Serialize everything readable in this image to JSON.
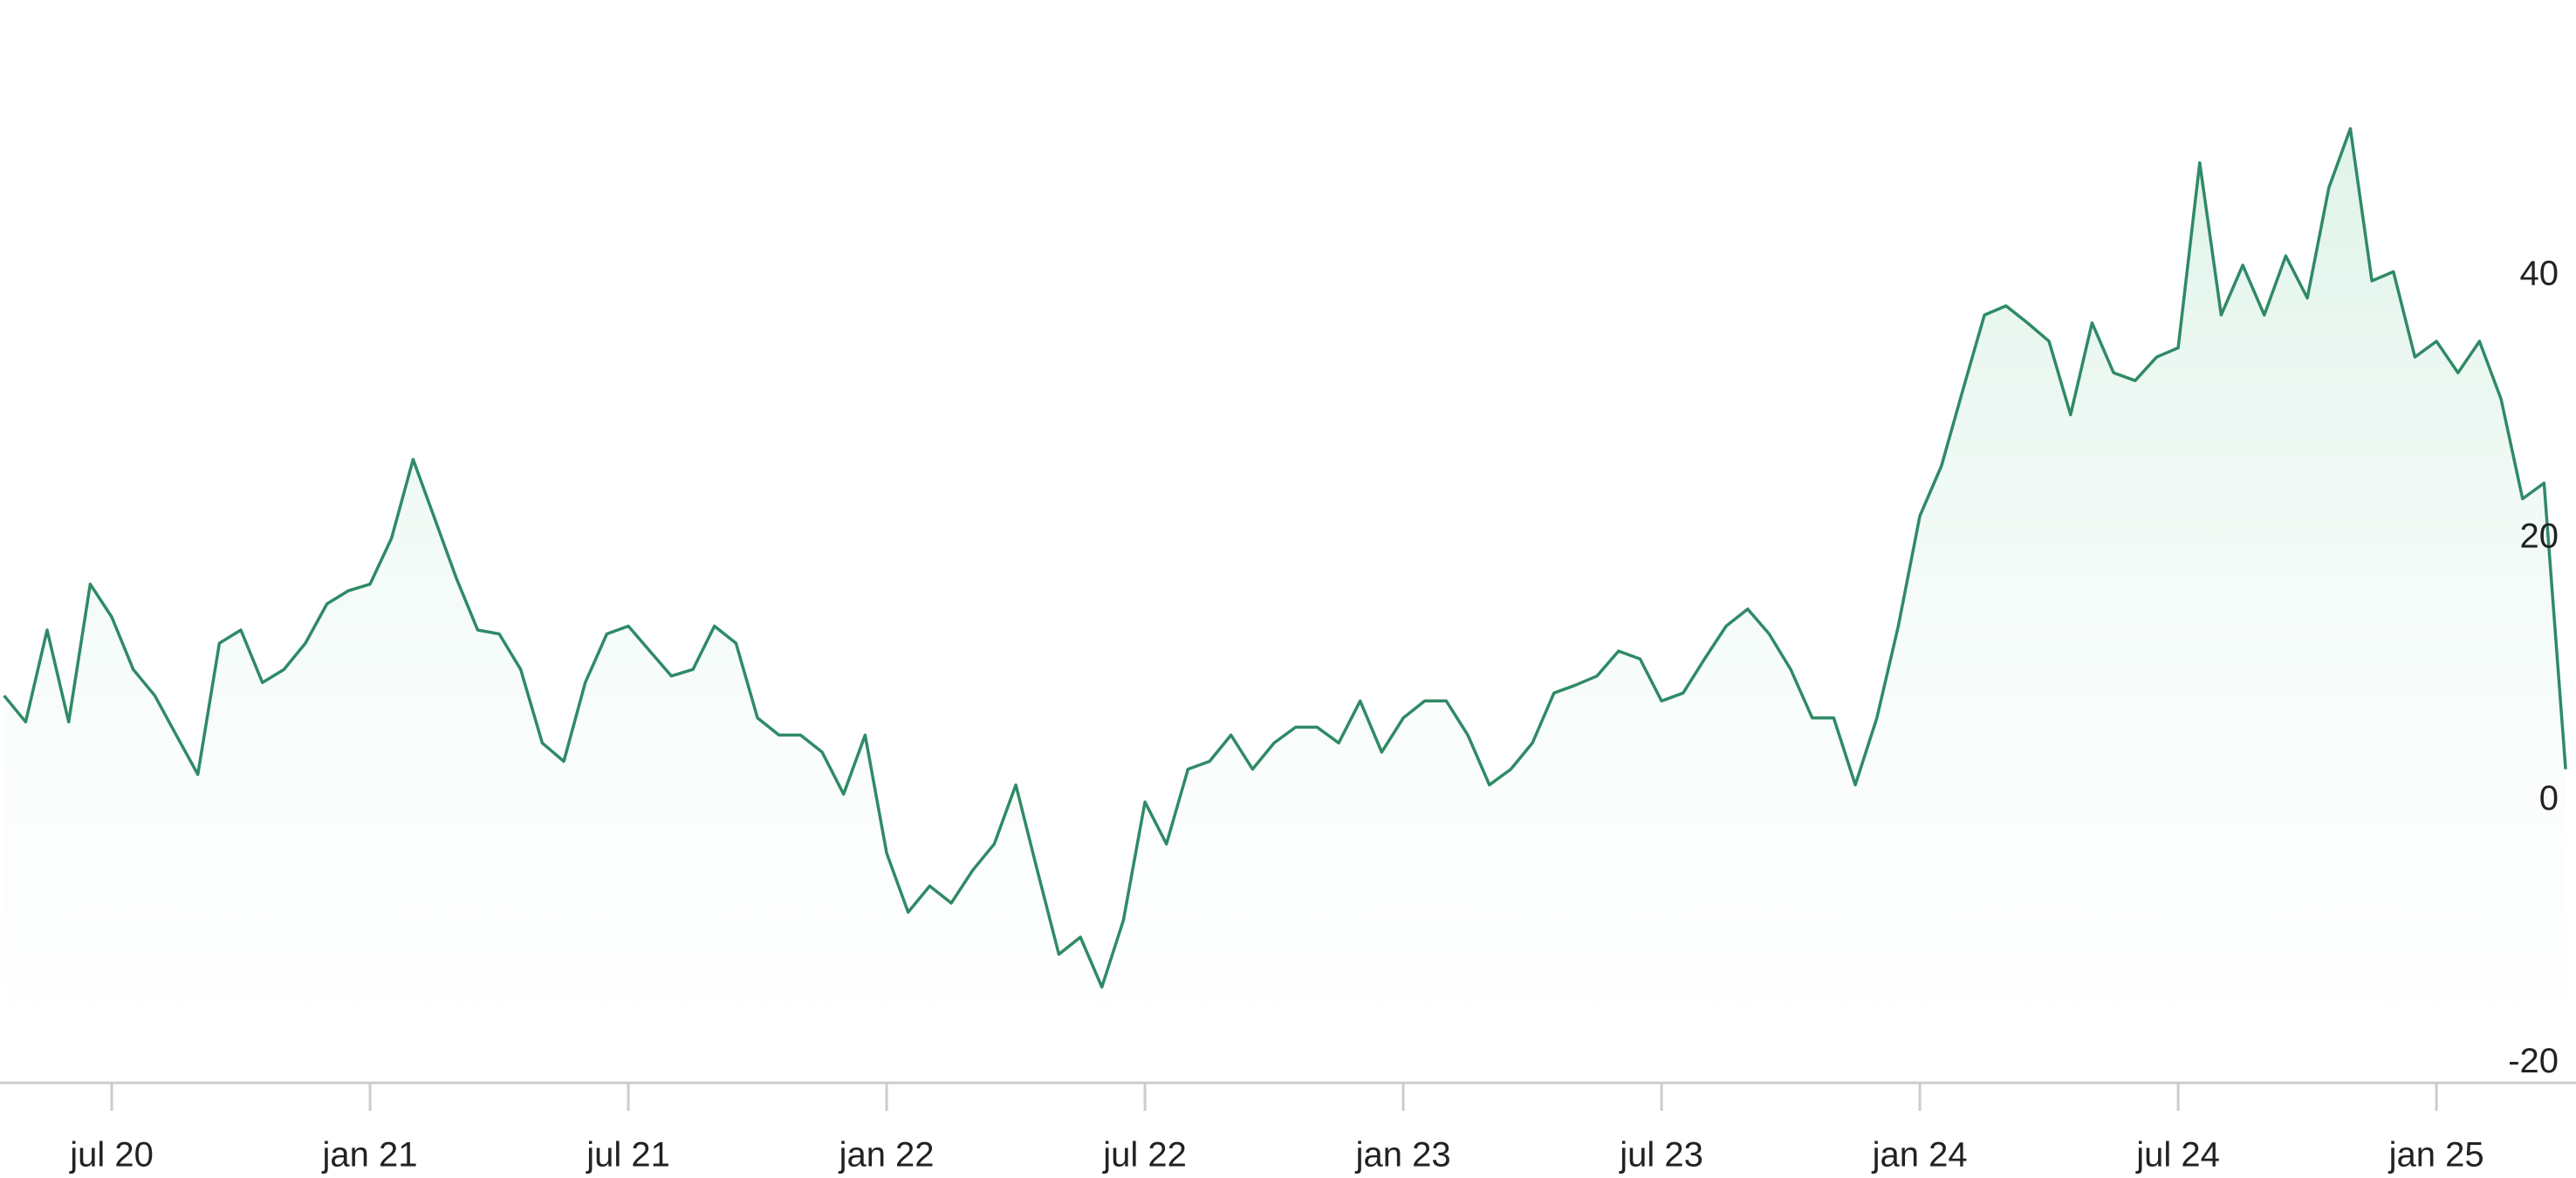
{
  "chart_data": {
    "type": "area",
    "categories": [
      null,
      null,
      null,
      null,
      null,
      "jul 20",
      null,
      null,
      null,
      null,
      null,
      null,
      null,
      null,
      null,
      null,
      null,
      "jan 21",
      null,
      null,
      null,
      null,
      null,
      null,
      null,
      null,
      null,
      null,
      null,
      "jul 21",
      null,
      null,
      null,
      null,
      null,
      null,
      null,
      null,
      null,
      null,
      null,
      "jan 22",
      null,
      null,
      null,
      null,
      null,
      null,
      null,
      null,
      null,
      null,
      null,
      "jul 22",
      null,
      null,
      null,
      null,
      null,
      null,
      null,
      null,
      null,
      null,
      null,
      "jan 23",
      null,
      null,
      null,
      null,
      null,
      null,
      null,
      null,
      null,
      null,
      null,
      "jul 23",
      null,
      null,
      null,
      null,
      null,
      null,
      null,
      null,
      null,
      null,
      null,
      "jan 24",
      null,
      null,
      null,
      null,
      null,
      null,
      null,
      null,
      null,
      null,
      null,
      "jul 24",
      null,
      null,
      null,
      null,
      null,
      null,
      null,
      null,
      null,
      null,
      null,
      "jan 25",
      null,
      null,
      null,
      null,
      null,
      null
    ],
    "values": [
      8,
      6,
      13,
      6,
      16.5,
      14,
      10,
      8,
      5,
      2,
      12,
      13,
      9,
      10,
      12,
      15,
      16,
      16.5,
      20,
      26,
      21.5,
      17,
      13,
      12.7,
      10,
      4.4,
      3,
      9,
      12.7,
      13.3,
      11.4,
      9.5,
      10,
      13.3,
      12,
      6.3,
      5,
      5,
      3.7,
      0.5,
      5,
      -4,
      -8.5,
      -6.5,
      -7.8,
      -5.3,
      -3.3,
      1.2,
      -5.3,
      -11.7,
      -10.4,
      -14.2,
      -9.1,
      -0.1,
      -3.3,
      2.4,
      3,
      5,
      2.4,
      4.4,
      5.6,
      5.6,
      4.4,
      7.6,
      3.7,
      6.3,
      7.6,
      7.6,
      5,
      1.2,
      2.4,
      4.4,
      8.2,
      8.8,
      9.5,
      11.4,
      10.8,
      7.6,
      8.2,
      10.8,
      13.3,
      14.6,
      12.7,
      10,
      6.3,
      6.3,
      1.2,
      6.3,
      13.3,
      21.7,
      25.5,
      31.3,
      37,
      37.7,
      36.4,
      35,
      29.4,
      36.4,
      32.6,
      32,
      33.8,
      34.5,
      48.6,
      37,
      40.8,
      37,
      41.5,
      38.3,
      46.7,
      51.2,
      39.6,
      40.3,
      33.8,
      35,
      32.6,
      35,
      30.6,
      23,
      24.2,
      2.4
    ],
    "color": "#2f8a66",
    "ylim": [
      -21.5,
      61
    ],
    "yticks": [
      -20,
      0,
      20,
      40
    ]
  }
}
